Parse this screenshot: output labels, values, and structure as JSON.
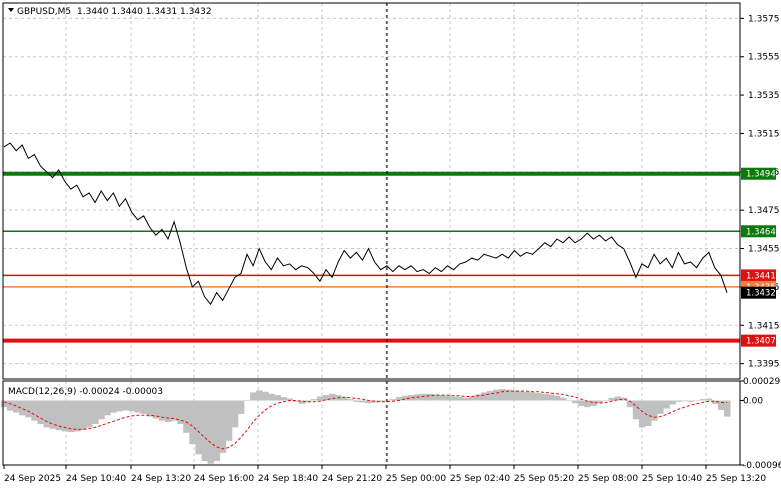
{
  "header": {
    "symbol_timeframe": "GBPUSD,M5",
    "ohlc": "1.3440 1.3440 1.3431 1.3432"
  },
  "colors": {
    "background": "#ffffff",
    "grid": "#c8c8c8",
    "axis": "#000000",
    "price_line": "#000000",
    "green_level": "#0b7a0b",
    "red_level": "#e01010",
    "orange_level": "#f08040",
    "macd_hist": "#c0c0c0",
    "macd_signal": "#e01010",
    "current_price_tag": "#000000"
  },
  "chart_data": [
    {
      "type": "line",
      "name": "price",
      "ylim": [
        1.3387,
        1.3583
      ],
      "y_ticks": [
        "1.3575",
        "1.3555",
        "1.3535",
        "1.3515",
        "1.3495",
        "1.3475",
        "1.3455",
        "1.3435",
        "1.3415",
        "1.3395"
      ],
      "x_labels": [
        "24 Sep 2025",
        "24 Sep 10:40",
        "24 Sep 13:20",
        "24 Sep 16:00",
        "24 Sep 18:40",
        "24 Sep 21:20",
        "25 Sep 00:00",
        "25 Sep 02:40",
        "25 Sep 05:20",
        "25 Sep 08:00",
        "25 Sep 10:40",
        "25 Sep 13:20"
      ],
      "grid": true,
      "values": [
        1.3508,
        1.351,
        1.3506,
        1.3509,
        1.3502,
        1.3504,
        1.3498,
        1.3495,
        1.3492,
        1.3496,
        1.349,
        1.3486,
        1.3488,
        1.3482,
        1.3484,
        1.3479,
        1.3485,
        1.348,
        1.3484,
        1.3477,
        1.3481,
        1.3474,
        1.347,
        1.3472,
        1.3466,
        1.3462,
        1.3465,
        1.346,
        1.3469,
        1.3458,
        1.3445,
        1.3435,
        1.3438,
        1.343,
        1.3426,
        1.3432,
        1.3428,
        1.3434,
        1.344,
        1.3442,
        1.3452,
        1.3446,
        1.3455,
        1.3448,
        1.3444,
        1.345,
        1.3446,
        1.3447,
        1.3444,
        1.3446,
        1.3445,
        1.3442,
        1.3438,
        1.3444,
        1.344,
        1.3448,
        1.3454,
        1.345,
        1.3453,
        1.3449,
        1.3455,
        1.3448,
        1.3444,
        1.3446,
        1.3443,
        1.3446,
        1.3444,
        1.3446,
        1.3443,
        1.3444,
        1.3442,
        1.3445,
        1.3443,
        1.3446,
        1.3444,
        1.3447,
        1.3448,
        1.345,
        1.3449,
        1.3452,
        1.3451,
        1.345,
        1.3452,
        1.345,
        1.3454,
        1.3451,
        1.3453,
        1.3452,
        1.3455,
        1.3458,
        1.3456,
        1.346,
        1.3458,
        1.3461,
        1.3458,
        1.346,
        1.3463,
        1.346,
        1.3462,
        1.3459,
        1.3461,
        1.3457,
        1.3455,
        1.3448,
        1.344,
        1.3447,
        1.3445,
        1.3452,
        1.3447,
        1.345,
        1.3445,
        1.3453,
        1.3447,
        1.3448,
        1.3445,
        1.345,
        1.3453,
        1.3445,
        1.3441,
        1.3432
      ],
      "horizontal_levels": [
        {
          "value": 1.3494,
          "label": "1.3494",
          "color": "green",
          "width": "thick"
        },
        {
          "value": 1.3464,
          "label": "1.3464",
          "color": "green",
          "width": "thin"
        },
        {
          "value": 1.3441,
          "label": "1.3441",
          "color": "red",
          "width": "thin"
        },
        {
          "value": 1.3435,
          "label": "1.3435",
          "color": "orange",
          "width": "thin"
        },
        {
          "value": 1.3432,
          "label": "1.3432",
          "color": "current",
          "width": "none"
        },
        {
          "value": 1.3407,
          "label": "1.3407",
          "color": "red",
          "width": "thick"
        }
      ],
      "vertical_marker_label": "25 Sep 00:00"
    },
    {
      "type": "bar",
      "name": "macd",
      "title": "MACD(12,26,9) -0.00024 -0.00003",
      "ylim": [
        -0.00096,
        0.00029
      ],
      "y_ticks": [
        "0.00029",
        "0.00",
        "-0.00096"
      ],
      "histogram": [
        -0.0001,
        -0.00015,
        -0.00018,
        -0.00022,
        -0.00025,
        -0.0003,
        -0.00035,
        -0.0004,
        -0.00042,
        -0.00044,
        -0.00046,
        -0.00047,
        -0.00046,
        -0.00044,
        -0.0004,
        -0.00035,
        -0.00028,
        -0.00022,
        -0.00018,
        -0.00016,
        -0.00015,
        -0.00016,
        -0.00018,
        -0.0002,
        -0.00024,
        -0.00027,
        -0.0003,
        -0.00032,
        -0.0003,
        -0.00035,
        -0.00048,
        -0.00065,
        -0.0008,
        -0.0009,
        -0.00094,
        -0.0009,
        -0.00078,
        -0.0006,
        -0.0004,
        -0.0002,
        0.0,
        0.00012,
        0.00015,
        0.00013,
        0.0001,
        8e-05,
        5e-05,
        3e-05,
        -2e-05,
        -5e-05,
        -3e-05,
        2e-05,
        6e-05,
        8e-05,
        0.0001,
        8e-05,
        5e-05,
        2e-05,
        -2e-05,
        -3e-05,
        -4e-05,
        -3e-05,
        -2e-05,
        0.0,
        2e-05,
        5e-05,
        7e-05,
        8e-05,
        9e-05,
        0.0001,
        0.0001,
        9e-05,
        8e-05,
        7e-05,
        6e-05,
        5e-05,
        4e-05,
        6e-05,
        9e-05,
        0.00012,
        0.00014,
        0.00016,
        0.00017,
        0.00016,
        0.00015,
        0.00014,
        0.00013,
        0.00012,
        0.00011,
        0.0001,
        9e-05,
        7e-05,
        4e-05,
        1e-05,
        -4e-05,
        -8e-05,
        -0.0001,
        -8e-05,
        -4e-05,
        0.0,
        4e-05,
        6e-05,
        4e-05,
        -0.0001,
        -0.00028,
        -0.0004,
        -0.00038,
        -0.0003,
        -0.0002,
        -0.00012,
        -6e-05,
        -2e-05,
        -1e-05,
        -2e-05,
        0.0,
        2e-05,
        3e-05,
        -5e-05,
        -0.00014,
        -0.00024
      ],
      "signal": [
        -2e-05,
        -5e-05,
        -8e-05,
        -0.00012,
        -0.00016,
        -0.00021,
        -0.00026,
        -0.00031,
        -0.00035,
        -0.00038,
        -0.0004,
        -0.00042,
        -0.00043,
        -0.00043,
        -0.00042,
        -0.0004,
        -0.00037,
        -0.00034,
        -0.00031,
        -0.00028,
        -0.00025,
        -0.00023,
        -0.00022,
        -0.00022,
        -0.00022,
        -0.00023,
        -0.00025,
        -0.00026,
        -0.00027,
        -0.00029,
        -0.00032,
        -0.00038,
        -0.00046,
        -0.00055,
        -0.00063,
        -0.00069,
        -0.00072,
        -0.0007,
        -0.00064,
        -0.00055,
        -0.00044,
        -0.00032,
        -0.00022,
        -0.00014,
        -8e-05,
        -4e-05,
        -2e-05,
        0.0,
        0.0,
        -1e-05,
        -2e-05,
        -2e-05,
        -1e-05,
        1e-05,
        3e-05,
        4e-05,
        5e-05,
        4e-05,
        3e-05,
        2e-05,
        0.0,
        -1e-05,
        -2e-05,
        -2e-05,
        -1e-05,
        0.0,
        2e-05,
        4e-05,
        5e-05,
        6e-05,
        7e-05,
        8e-05,
        8e-05,
        8e-05,
        7e-05,
        7e-05,
        6e-05,
        6e-05,
        7e-05,
        8e-05,
        0.0001,
        0.00011,
        0.00013,
        0.00014,
        0.00014,
        0.00014,
        0.00014,
        0.00013,
        0.00013,
        0.00012,
        0.00011,
        0.0001,
        9e-05,
        7e-05,
        5e-05,
        2e-05,
        -1e-05,
        -3e-05,
        -4e-05,
        -3e-05,
        -1e-05,
        1e-05,
        2e-05,
        -1e-05,
        -8e-05,
        -0.00016,
        -0.00022,
        -0.00025,
        -0.00024,
        -0.00021,
        -0.00017,
        -0.00013,
        -0.0001,
        -7e-05,
        -5e-05,
        -3e-05,
        -1e-05,
        -1e-05,
        -3e-05,
        -3e-05
      ]
    }
  ]
}
